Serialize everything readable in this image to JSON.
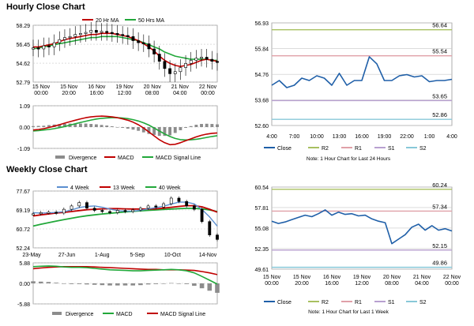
{
  "sections": {
    "hourly_title": "Hourly Close Chart",
    "weekly_title": "Weekly Close Chart"
  },
  "colors": {
    "close": "#1f5fa8",
    "ma20": "#c00000",
    "ma50": "#22a83a",
    "r2": "#a8c060",
    "r1": "#e0a0a8",
    "s1": "#b8a0d0",
    "s2": "#88c8d8",
    "divergence": "#8c8c8c",
    "grid": "#c8c8c8"
  },
  "chart_data": [
    {
      "id": "hourly_price",
      "type": "line",
      "legend": [
        "20 Hr MA",
        "50 Hrs MA"
      ],
      "y_ticks": [
        "58.29",
        "56.45",
        "54.62",
        "52.79"
      ],
      "ylim": [
        52.79,
        58.29
      ],
      "x_ticks": [
        "15 Nov\n00:00",
        "15 Nov\n20:00",
        "16 Nov\n16:00",
        "19 Nov\n12:00",
        "20 Nov\n08:00",
        "21 Nov\n04:00",
        "22 Nov\n00:00"
      ],
      "series": [
        {
          "name": "Close",
          "values": [
            56.1,
            56.0,
            56.3,
            56.2,
            56.6,
            56.9,
            57.1,
            57.2,
            57.4,
            57.5,
            57.6,
            57.8,
            57.6,
            57.7,
            57.6,
            57.5,
            57.4,
            57.3,
            57.2,
            56.8,
            56.6,
            56.5,
            56.0,
            55.5,
            54.8,
            54.1,
            53.6,
            53.8,
            54.2,
            54.6,
            54.9,
            55.1,
            55.2,
            55.0,
            54.8,
            54.7
          ]
        },
        {
          "name": "20 Hr MA",
          "values": [
            56.2,
            56.2,
            56.3,
            56.4,
            56.5,
            56.7,
            56.9,
            57.0,
            57.1,
            57.2,
            57.3,
            57.4,
            57.4,
            57.5,
            57.5,
            57.5,
            57.4,
            57.3,
            57.2,
            57.0,
            56.8,
            56.5,
            56.2,
            55.8,
            55.3,
            54.9,
            54.6,
            54.4,
            54.3,
            54.4,
            54.5,
            54.7,
            54.9,
            55.0,
            54.9,
            54.8
          ]
        },
        {
          "name": "50 Hrs MA",
          "values": [
            56.0,
            56.1,
            56.2,
            56.3,
            56.4,
            56.5,
            56.6,
            56.7,
            56.8,
            56.9,
            57.0,
            57.1,
            57.1,
            57.2,
            57.2,
            57.2,
            57.2,
            57.1,
            57.0,
            56.9,
            56.8,
            56.6,
            56.4,
            56.2,
            56.0,
            55.7,
            55.5,
            55.3,
            55.2,
            55.1,
            55.0,
            55.0,
            55.0,
            55.0,
            54.9,
            54.9
          ]
        }
      ]
    },
    {
      "id": "hourly_macd",
      "type": "line",
      "legend": [
        "Divergence",
        "MACD",
        "MACD Signal Line"
      ],
      "y_ticks": [
        "1.09",
        "0.00",
        "-1.09"
      ],
      "ylim": [
        -1.09,
        1.09
      ],
      "series": [
        {
          "name": "MACD",
          "values": [
            -0.15,
            -0.12,
            -0.08,
            -0.02,
            0.05,
            0.12,
            0.2,
            0.28,
            0.35,
            0.42,
            0.48,
            0.52,
            0.55,
            0.56,
            0.55,
            0.52,
            0.48,
            0.42,
            0.35,
            0.25,
            0.12,
            -0.05,
            -0.25,
            -0.45,
            -0.65,
            -0.8,
            -0.9,
            -0.88,
            -0.8,
            -0.7,
            -0.6,
            -0.5,
            -0.42,
            -0.36,
            -0.32,
            -0.3
          ]
        },
        {
          "name": "MACD Signal Line",
          "values": [
            -0.2,
            -0.18,
            -0.15,
            -0.12,
            -0.08,
            -0.03,
            0.03,
            0.1,
            0.17,
            0.24,
            0.3,
            0.36,
            0.41,
            0.45,
            0.47,
            0.48,
            0.48,
            0.46,
            0.43,
            0.38,
            0.31,
            0.22,
            0.1,
            -0.05,
            -0.2,
            -0.35,
            -0.48,
            -0.58,
            -0.64,
            -0.66,
            -0.65,
            -0.62,
            -0.58,
            -0.53,
            -0.48,
            -0.44
          ]
        },
        {
          "name": "Divergence",
          "values": [
            0.05,
            0.06,
            0.07,
            0.1,
            0.13,
            0.15,
            0.17,
            0.18,
            0.18,
            0.18,
            0.18,
            0.16,
            0.14,
            0.11,
            0.08,
            0.04,
            0.0,
            -0.04,
            -0.08,
            -0.13,
            -0.19,
            -0.27,
            -0.35,
            -0.4,
            -0.45,
            -0.45,
            -0.42,
            -0.3,
            -0.16,
            -0.04,
            0.05,
            0.12,
            0.16,
            0.17,
            0.16,
            0.14
          ]
        }
      ]
    },
    {
      "id": "hourly_24h",
      "type": "line",
      "y_ticks": [
        "56.93",
        "55.84",
        "54.76",
        "53.68",
        "52.60"
      ],
      "ylim": [
        52.6,
        56.93
      ],
      "x_ticks": [
        "4:00",
        "7:00",
        "10:00",
        "13:00",
        "16:00",
        "19:00",
        "22:00",
        "1:00",
        "4:00"
      ],
      "levels": [
        {
          "name": "R2",
          "value": 56.64
        },
        {
          "name": "R1",
          "value": 55.54
        },
        {
          "name": "S1",
          "value": 53.65
        },
        {
          "name": "S2",
          "value": 52.86
        }
      ],
      "series": [
        {
          "name": "Close",
          "values": [
            54.3,
            54.5,
            54.2,
            54.3,
            54.6,
            54.5,
            54.7,
            54.6,
            54.3,
            54.8,
            54.3,
            54.5,
            54.5,
            55.5,
            55.2,
            54.5,
            54.5,
            54.7,
            54.75,
            54.65,
            54.7,
            54.45,
            54.5,
            54.5,
            54.55
          ]
        }
      ],
      "legend": [
        "Close",
        "R2",
        "R1",
        "S1",
        "S2"
      ],
      "note": "Note: 1 Hour Chart for Last 24 Hours"
    },
    {
      "id": "weekly_price",
      "type": "line",
      "legend": [
        "4 Week",
        "13 Week",
        "40 Week"
      ],
      "y_ticks": [
        "77.67",
        "69.19",
        "60.72",
        "52.24"
      ],
      "ylim": [
        52.24,
        77.67
      ],
      "x_ticks": [
        "23-May",
        "27-Jun",
        "1-Aug",
        "5-Sep",
        "10-Oct",
        "14-Nov"
      ],
      "series": [
        {
          "name": "Close",
          "values": [
            67.5,
            68.0,
            68.2,
            67.8,
            69.5,
            71.0,
            72.5,
            70.0,
            69.0,
            68.5,
            68.0,
            69.0,
            68.5,
            69.2,
            70.0,
            71.0,
            70.5,
            72.0,
            74.5,
            73.0,
            71.0,
            69.5,
            64.0,
            58.0,
            56.0
          ]
        },
        {
          "name": "4 Week",
          "values": [
            68.0,
            67.8,
            67.9,
            68.1,
            68.4,
            69.2,
            70.3,
            70.8,
            71.0,
            70.4,
            69.6,
            68.9,
            68.6,
            68.7,
            69.0,
            69.7,
            70.2,
            70.9,
            71.8,
            72.7,
            72.7,
            71.9,
            69.4,
            66.1,
            62.0
          ]
        },
        {
          "name": "13 Week",
          "values": [
            66.5,
            67.0,
            67.4,
            67.8,
            68.1,
            68.5,
            68.9,
            69.3,
            69.5,
            69.7,
            69.8,
            69.8,
            69.7,
            69.6,
            69.6,
            69.6,
            69.7,
            70.0,
            70.4,
            70.8,
            71.1,
            71.1,
            70.6,
            69.5,
            68.2
          ]
        },
        {
          "name": "40 Week",
          "values": [
            62.0,
            62.8,
            63.5,
            64.2,
            64.9,
            65.5,
            66.1,
            66.6,
            67.0,
            67.4,
            67.7,
            68.0,
            68.3,
            68.6,
            68.8,
            69.0,
            69.2,
            69.4,
            69.6,
            69.8,
            69.9,
            69.9,
            69.7,
            69.2,
            68.5
          ]
        }
      ]
    },
    {
      "id": "weekly_macd",
      "type": "line",
      "legend": [
        "Divergence",
        "MACD",
        "MACD Signal Line"
      ],
      "y_ticks": [
        "5.88",
        "0.00",
        "-5.88"
      ],
      "ylim": [
        -5.88,
        5.88
      ],
      "series": [
        {
          "name": "MACD",
          "values": [
            4.8,
            4.9,
            5.0,
            4.9,
            4.7,
            4.6,
            4.6,
            4.5,
            4.3,
            4.1,
            3.9,
            3.8,
            3.7,
            3.6,
            3.6,
            3.7,
            3.8,
            3.9,
            4.0,
            3.9,
            3.6,
            3.0,
            2.0,
            0.9,
            -0.2
          ]
        },
        {
          "name": "MACD Signal Line",
          "values": [
            4.2,
            4.4,
            4.6,
            4.7,
            4.8,
            4.8,
            4.8,
            4.8,
            4.7,
            4.6,
            4.5,
            4.4,
            4.3,
            4.2,
            4.1,
            4.0,
            4.0,
            3.9,
            3.9,
            3.9,
            3.8,
            3.7,
            3.4,
            3.0,
            2.5
          ]
        },
        {
          "name": "Divergence",
          "values": [
            0.6,
            0.5,
            0.4,
            0.2,
            -0.1,
            -0.2,
            -0.2,
            -0.3,
            -0.4,
            -0.5,
            -0.6,
            -0.6,
            -0.6,
            -0.6,
            -0.5,
            -0.3,
            -0.2,
            0.0,
            0.1,
            0.0,
            -0.2,
            -0.7,
            -1.4,
            -2.1,
            -2.7
          ]
        }
      ]
    },
    {
      "id": "weekly_1w",
      "type": "line",
      "y_ticks": [
        "60.54",
        "57.81",
        "55.08",
        "52.35",
        "49.61"
      ],
      "ylim": [
        49.61,
        60.54
      ],
      "x_ticks": [
        "15 Nov\n00:00",
        "15 Nov\n20:00",
        "16 Nov\n16:00",
        "19 Nov\n12:00",
        "20 Nov\n08:00",
        "21 Nov\n04:00",
        "22 Nov\n00:00"
      ],
      "levels": [
        {
          "name": "R2",
          "value": 60.24
        },
        {
          "name": "R1",
          "value": 57.34
        },
        {
          "name": "S1",
          "value": 52.15
        },
        {
          "name": "S2",
          "value": 49.86
        }
      ],
      "series": [
        {
          "name": "Close",
          "values": [
            56.0,
            55.7,
            55.9,
            56.2,
            56.5,
            56.8,
            56.6,
            57.0,
            57.5,
            56.8,
            57.2,
            56.9,
            57.0,
            56.7,
            56.8,
            56.3,
            56.0,
            55.8,
            53.0,
            53.6,
            54.2,
            55.2,
            55.6,
            54.8,
            55.4,
            54.8,
            55.0,
            54.7
          ]
        }
      ],
      "legend": [
        "Close",
        "R2",
        "R1",
        "S1",
        "S2"
      ],
      "note": "Note: 1 Hour Chart for Last 1 Week"
    }
  ]
}
